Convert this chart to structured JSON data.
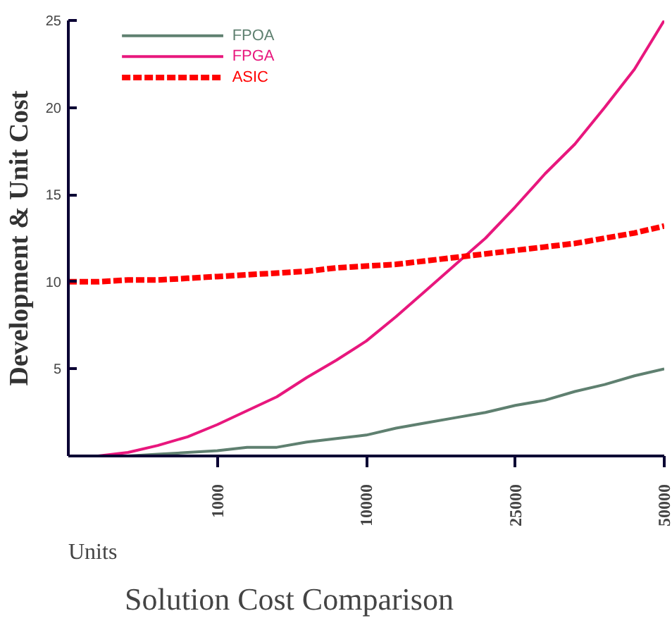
{
  "chart_data": {
    "type": "line",
    "title": "Solution Cost Comparison",
    "xlabel": "Units",
    "ylabel": "Development & Unit Cost",
    "categories": [
      null,
      null,
      null,
      null,
      null,
      "1000",
      null,
      null,
      null,
      null,
      "10000",
      null,
      null,
      null,
      null,
      "25000",
      null,
      null,
      null,
      null,
      "50000"
    ],
    "ylim": [
      0,
      25
    ],
    "yticks": [
      5,
      10,
      15,
      20,
      25
    ],
    "grid": false,
    "legend": "top left",
    "series": [
      {
        "name": "FPOA",
        "color": "#5f8070",
        "line_style": "solid",
        "values": [
          0,
          0,
          0,
          0.1,
          0.2,
          0.3,
          0.5,
          0.5,
          0.8,
          1.0,
          1.2,
          1.6,
          1.9,
          2.2,
          2.5,
          2.9,
          3.2,
          3.7,
          4.1,
          4.6,
          5.0
        ]
      },
      {
        "name": "FPGA",
        "color": "#e8177d",
        "line_style": "solid",
        "values": [
          0,
          0,
          0.2,
          0.6,
          1.1,
          1.8,
          2.6,
          3.4,
          4.5,
          5.5,
          6.6,
          8.0,
          9.5,
          11.0,
          12.5,
          14.3,
          16.2,
          17.9,
          20.0,
          22.2,
          25
        ]
      },
      {
        "name": "ASIC",
        "color": "#ff0000",
        "line_style": "dashed",
        "values": [
          10.0,
          10.0,
          10.1,
          10.1,
          10.2,
          10.3,
          10.4,
          10.5,
          10.6,
          10.8,
          10.9,
          11.0,
          11.2,
          11.4,
          11.6,
          11.8,
          12.0,
          12.2,
          12.5,
          12.8,
          13.2
        ]
      }
    ]
  }
}
